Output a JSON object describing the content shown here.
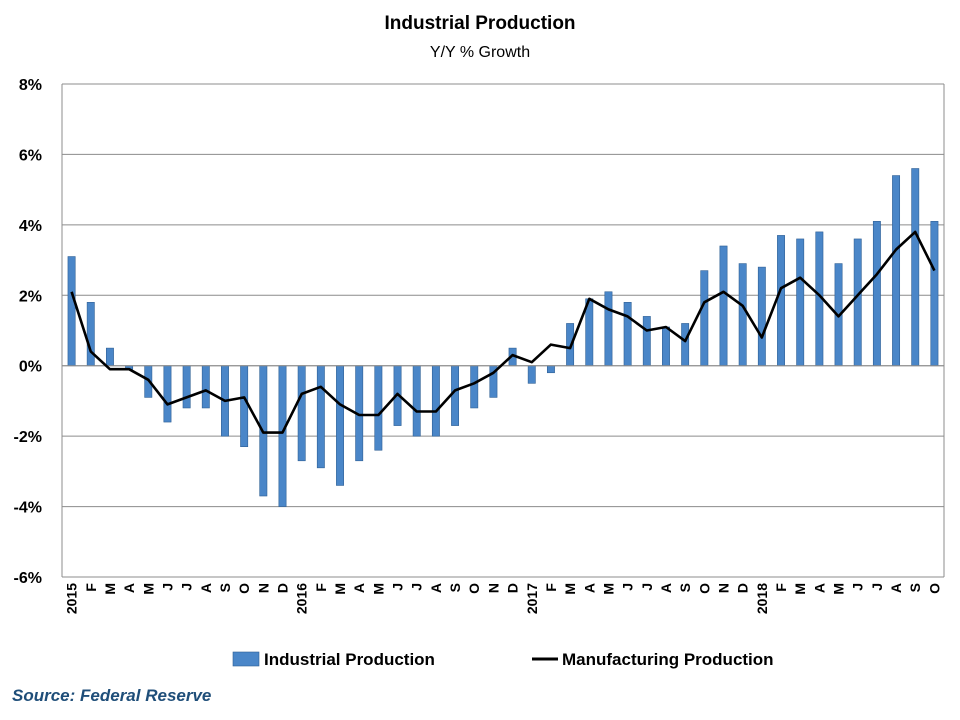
{
  "chart_data": {
    "type": "bar",
    "title": "Industrial Production",
    "subtitle": "Y/Y % Growth",
    "y_tick_labels": [
      "-6%",
      "-4%",
      "-2%",
      "0%",
      "2%",
      "4%",
      "6%",
      "8%"
    ],
    "ylim": [
      -6,
      8
    ],
    "grid": true,
    "legend_position": "bottom",
    "categories": [
      "2015",
      "F",
      "M",
      "A",
      "M",
      "J",
      "J",
      "A",
      "S",
      "O",
      "N",
      "D",
      "2016",
      "F",
      "M",
      "A",
      "M",
      "J",
      "J",
      "A",
      "S",
      "O",
      "N",
      "D",
      "2017",
      "F",
      "M",
      "A",
      "M",
      "J",
      "J",
      "A",
      "S",
      "O",
      "N",
      "D",
      "2018",
      "F",
      "M",
      "A",
      "M",
      "J",
      "J",
      "A",
      "S",
      "O"
    ],
    "series": [
      {
        "name": "Industrial Production",
        "kind": "bar",
        "color": "#4a86c8",
        "values": [
          3.1,
          1.8,
          0.5,
          -0.1,
          -0.9,
          -1.6,
          -1.2,
          -1.2,
          -2.0,
          -2.3,
          -3.7,
          -4.0,
          -2.7,
          -2.9,
          -3.4,
          -2.7,
          -2.4,
          -1.7,
          -2.0,
          -2.0,
          -1.7,
          -1.2,
          -0.9,
          0.5,
          -0.5,
          -0.2,
          1.2,
          1.9,
          2.1,
          1.8,
          1.4,
          1.1,
          1.2,
          2.7,
          3.4,
          2.9,
          2.8,
          3.7,
          3.6,
          3.8,
          2.9,
          3.6,
          4.1,
          5.4,
          5.6,
          4.1
        ]
      },
      {
        "name": "Manufacturing Production",
        "kind": "line",
        "color": "#000000",
        "values": [
          2.1,
          0.4,
          -0.1,
          -0.1,
          -0.4,
          -1.1,
          -0.9,
          -0.7,
          -1.0,
          -0.9,
          -1.9,
          -1.9,
          -0.8,
          -0.6,
          -1.1,
          -1.4,
          -1.4,
          -0.8,
          -1.3,
          -1.3,
          -0.7,
          -0.5,
          -0.2,
          0.3,
          0.1,
          0.6,
          0.5,
          1.9,
          1.6,
          1.4,
          1.0,
          1.1,
          0.7,
          1.8,
          2.1,
          1.7,
          0.8,
          2.2,
          2.5,
          2.0,
          1.4,
          2.0,
          2.6,
          3.3,
          3.8,
          2.7
        ]
      }
    ]
  },
  "source": "Source: Federal Reserve"
}
